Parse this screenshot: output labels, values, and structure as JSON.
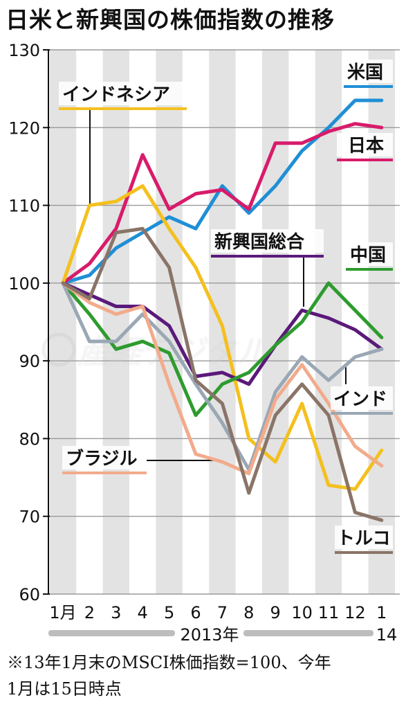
{
  "title": "日米と新興国の株価指数の推移",
  "note": {
    "line1": "※13年1月末のMSCI株価指数=100、今年",
    "line2": "1月は15日時点"
  },
  "year_labels": {
    "main": "2013年",
    "next": "14"
  },
  "watermark": "産経デジタル",
  "chart_data": {
    "type": "line",
    "title": "日米と新興国の株価指数の推移",
    "x": [
      "1月",
      "2",
      "3",
      "4",
      "5",
      "6",
      "7",
      "8",
      "9",
      "10",
      "11",
      "12",
      "1"
    ],
    "ylim": [
      60,
      130
    ],
    "yticks": [
      60,
      70,
      80,
      90,
      100,
      110,
      120,
      130
    ],
    "grid": true,
    "series": [
      {
        "name": "米国",
        "color": "#1f8fd6",
        "values": [
          100,
          101,
          104.5,
          106.5,
          108.5,
          107,
          112.5,
          109,
          112.5,
          117,
          120,
          123.5,
          123.5
        ]
      },
      {
        "name": "日本",
        "color": "#d81b6a",
        "values": [
          100,
          102.5,
          107,
          116.5,
          109.5,
          111.5,
          112,
          109.5,
          118,
          118,
          119.5,
          120.5,
          120
        ]
      },
      {
        "name": "インドネシア",
        "color": "#f4c01e",
        "values": [
          100,
          110,
          110.5,
          112.5,
          107,
          102,
          94.5,
          80,
          77,
          84.5,
          74,
          73.5,
          78.5
        ]
      },
      {
        "name": "新興国総合",
        "color": "#5b1a7a",
        "values": [
          100,
          98.5,
          97,
          97,
          94.5,
          88,
          88.5,
          87,
          92,
          96.5,
          95.5,
          94,
          91.5
        ]
      },
      {
        "name": "中国",
        "color": "#2e9b2e",
        "values": [
          100,
          96,
          91.5,
          92.5,
          91,
          83,
          87,
          88.5,
          92,
          95,
          100,
          96.5,
          93
        ]
      },
      {
        "name": "インド",
        "color": "#9aa7b4",
        "values": [
          100,
          92.5,
          92.5,
          96,
          92.5,
          87,
          82,
          76,
          86,
          90.5,
          87.5,
          90.5,
          91.5
        ]
      },
      {
        "name": "ブラジル",
        "color": "#f2ab8b",
        "values": [
          100,
          97.5,
          96,
          97,
          87,
          78,
          77,
          75.5,
          85,
          89.5,
          84.5,
          79,
          76.5
        ]
      },
      {
        "name": "トルコ",
        "color": "#8a7468",
        "values": [
          100,
          98,
          106.5,
          107,
          102,
          87.5,
          84.5,
          73,
          83,
          87,
          83,
          70.5,
          69.5
        ]
      }
    ]
  }
}
